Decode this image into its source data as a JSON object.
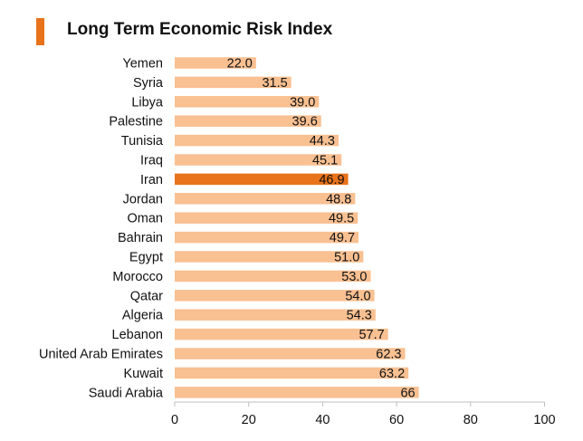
{
  "chart_data": {
    "type": "bar",
    "orientation": "horizontal",
    "title": "Long Term Economic Risk Index",
    "categories": [
      "Yemen",
      "Syria",
      "Libya",
      "Palestine",
      "Tunisia",
      "Iraq",
      "Iran",
      "Jordan",
      "Oman",
      "Bahrain",
      "Egypt",
      "Morocco",
      "Qatar",
      "Algeria",
      "Lebanon",
      "United Arab Emirates",
      "Kuwait",
      "Saudi Arabia"
    ],
    "values": [
      22.0,
      31.5,
      39.0,
      39.6,
      44.3,
      45.1,
      46.9,
      48.8,
      49.5,
      49.7,
      51.0,
      53.0,
      54.0,
      54.3,
      57.7,
      62.3,
      63.2,
      66
    ],
    "labels": [
      "22.0",
      "31.5",
      "39.0",
      "39.6",
      "44.3",
      "45.1",
      "46.9",
      "48.8",
      "49.5",
      "49.7",
      "51.0",
      "53.0",
      "54.0",
      "54.3",
      "57.7",
      "62.3",
      "63.2",
      "66"
    ],
    "highlight": "Iran",
    "xlim": [
      0,
      100
    ],
    "xticks": [
      0,
      20,
      40,
      60,
      80,
      100
    ],
    "xlabel": "",
    "ylabel": "",
    "grid": false,
    "colors": {
      "bar": "#F9C092",
      "highlight": "#E8731B",
      "title_mark": "#E8731B",
      "axis": "#BFBFBF"
    }
  }
}
